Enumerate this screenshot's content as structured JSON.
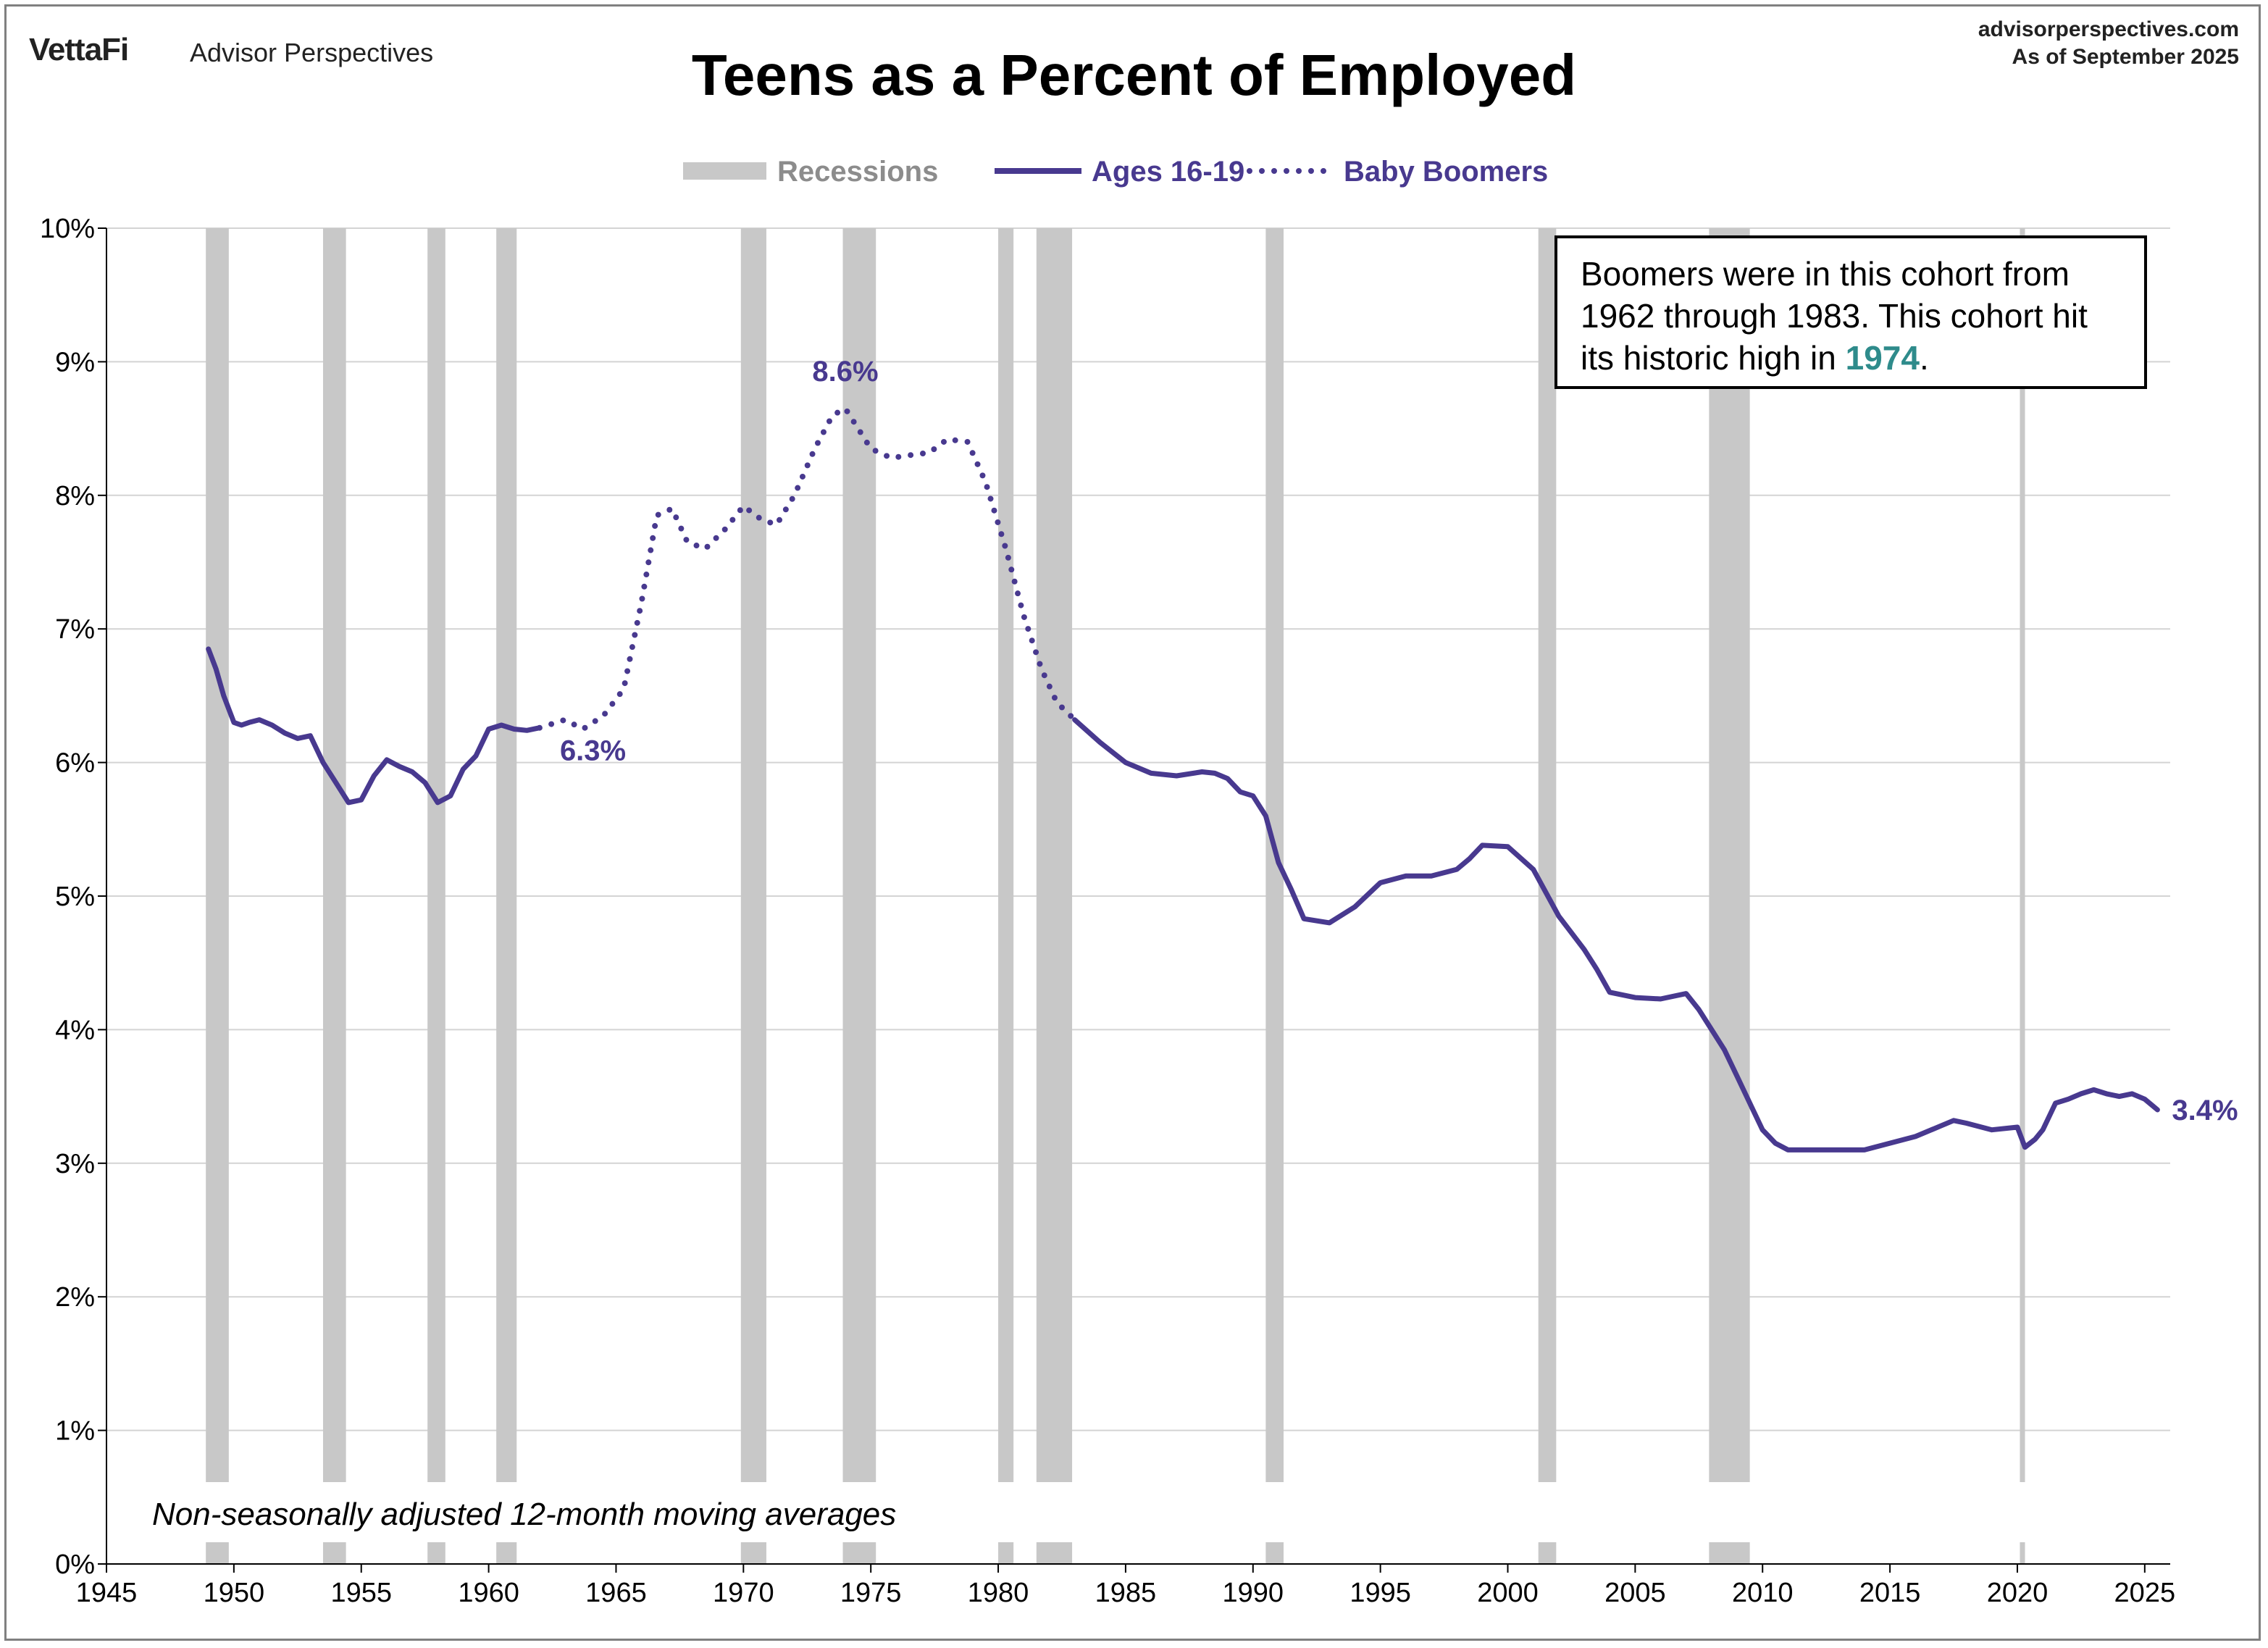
{
  "header": {
    "brand": "VettaFi",
    "brand_sub": "Advisor Perspectives",
    "source_line1": "advisorperspectives.com",
    "source_line2": "As of September 2025"
  },
  "callout": {
    "text_before": "Boomers were in this cohort from 1962 through 1983. This cohort hit its historic high in ",
    "highlight": "1974",
    "text_after": "."
  },
  "chart_data": {
    "type": "line",
    "title": "Teens as a Percent of Employed",
    "note": "Non-seasonally adjusted  12-month moving averages",
    "xlim": [
      1945,
      2026
    ],
    "ylim": [
      0,
      10
    ],
    "x_ticks": [
      1945,
      1950,
      1955,
      1960,
      1965,
      1970,
      1975,
      1980,
      1985,
      1990,
      1995,
      2000,
      2005,
      2010,
      2015,
      2020,
      2025
    ],
    "y_ticks": [
      "0%",
      "1%",
      "2%",
      "3%",
      "4%",
      "5%",
      "6%",
      "7%",
      "8%",
      "9%",
      "10%"
    ],
    "grid": true,
    "legend": [
      {
        "label": "Recessions",
        "color": "#c8c8c8",
        "style": "band"
      },
      {
        "label": "Ages 16-19",
        "color": "#48398f",
        "style": "solid"
      },
      {
        "label": "Baby Boomers",
        "color": "#48398f",
        "style": "dotted"
      }
    ],
    "recessions": [
      [
        1948.9,
        1949.8
      ],
      [
        1953.5,
        1954.4
      ],
      [
        1957.6,
        1958.3
      ],
      [
        1960.3,
        1961.1
      ],
      [
        1969.9,
        1970.9
      ],
      [
        1973.9,
        1975.2
      ],
      [
        1980.0,
        1980.6
      ],
      [
        1981.5,
        1982.9
      ],
      [
        1990.5,
        1991.2
      ],
      [
        2001.2,
        2001.9
      ],
      [
        2007.9,
        2009.5
      ],
      [
        2020.1,
        2020.3
      ]
    ],
    "series": [
      {
        "name": "Ages 16-19",
        "style": "solid",
        "color": "#48398f",
        "x": [
          1949.0,
          1949.3,
          1949.6,
          1950.0,
          1950.3,
          1950.6,
          1951.0,
          1951.5,
          1952.0,
          1952.5,
          1953.0,
          1953.5,
          1954.0,
          1954.5,
          1955.0,
          1955.5,
          1956.0,
          1956.5,
          1957.0,
          1957.5,
          1958.0,
          1958.5,
          1959.0,
          1959.5,
          1960.0,
          1960.5,
          1961.0,
          1961.5,
          1962.0
        ],
        "y": [
          6.85,
          6.7,
          6.5,
          6.3,
          6.28,
          6.3,
          6.32,
          6.28,
          6.22,
          6.18,
          6.2,
          6.0,
          5.85,
          5.7,
          5.72,
          5.9,
          6.02,
          5.97,
          5.93,
          5.85,
          5.7,
          5.75,
          5.95,
          6.05,
          6.25,
          6.28,
          6.25,
          6.24,
          6.26
        ]
      },
      {
        "name": "Baby Boomers",
        "style": "dotted",
        "color": "#48398f",
        "x": [
          1962.0,
          1963.0,
          1963.7,
          1964.5,
          1965.3,
          1966.0,
          1966.6,
          1967.2,
          1967.8,
          1968.5,
          1969.3,
          1970.0,
          1970.7,
          1971.3,
          1972.0,
          1972.8,
          1973.5,
          1974.0,
          1974.5,
          1975.0,
          1975.8,
          1976.5,
          1977.3,
          1978.0,
          1978.8,
          1979.5,
          1980.3,
          1981.0,
          1981.7,
          1982.3,
          1983.0
        ],
        "y": [
          6.26,
          6.32,
          6.25,
          6.35,
          6.55,
          7.2,
          7.85,
          7.9,
          7.65,
          7.6,
          7.75,
          7.92,
          7.82,
          7.78,
          8.0,
          8.35,
          8.6,
          8.65,
          8.5,
          8.35,
          8.28,
          8.3,
          8.32,
          8.42,
          8.4,
          8.1,
          7.6,
          7.1,
          6.7,
          6.45,
          6.32
        ]
      },
      {
        "name": "Ages 16-19",
        "style": "solid",
        "color": "#48398f",
        "x": [
          1983.0,
          1984.0,
          1985.0,
          1986.0,
          1987.0,
          1988.0,
          1988.5,
          1989.0,
          1989.5,
          1990.0,
          1990.5,
          1991.0,
          1991.5,
          1992.0,
          1993.0,
          1994.0,
          1995.0,
          1996.0,
          1997.0,
          1998.0,
          1998.5,
          1999.0,
          2000.0,
          2001.0,
          2002.0,
          2003.0,
          2003.5,
          2004.0,
          2005.0,
          2006.0,
          2007.0,
          2007.5,
          2008.0,
          2008.5,
          2009.0,
          2009.5,
          2010.0,
          2010.5,
          2011.0,
          2012.0,
          2013.0,
          2014.0,
          2015.0,
          2016.0,
          2017.0,
          2017.5,
          2018.0,
          2019.0,
          2020.0,
          2020.3,
          2020.7,
          2021.0,
          2021.5,
          2022.0,
          2022.5,
          2023.0,
          2023.5,
          2024.0,
          2024.5,
          2025.0,
          2025.5
        ],
        "y": [
          6.32,
          6.15,
          6.0,
          5.92,
          5.9,
          5.93,
          5.92,
          5.88,
          5.78,
          5.75,
          5.6,
          5.25,
          5.05,
          4.83,
          4.8,
          4.92,
          5.1,
          5.15,
          5.15,
          5.2,
          5.28,
          5.38,
          5.37,
          5.2,
          4.85,
          4.6,
          4.45,
          4.28,
          4.24,
          4.23,
          4.27,
          4.15,
          4.0,
          3.85,
          3.65,
          3.45,
          3.25,
          3.15,
          3.1,
          3.1,
          3.1,
          3.1,
          3.15,
          3.2,
          3.28,
          3.32,
          3.3,
          3.25,
          3.27,
          3.12,
          3.18,
          3.25,
          3.45,
          3.48,
          3.52,
          3.55,
          3.52,
          3.5,
          3.52,
          3.48,
          3.4
        ]
      }
    ],
    "data_labels": [
      {
        "text": "6.3%",
        "x": 1962.0,
        "y": 6.26
      },
      {
        "text": "8.6%",
        "x": 1974.0,
        "y": 8.65
      },
      {
        "text": "3.4%",
        "x": 2025.5,
        "y": 3.4
      }
    ]
  }
}
